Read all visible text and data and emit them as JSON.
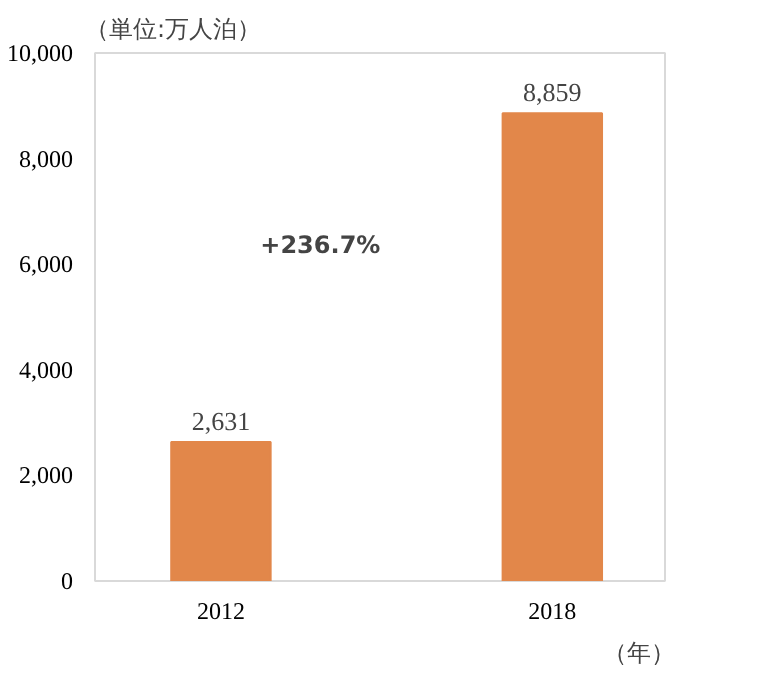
{
  "chart_data": {
    "type": "bar",
    "ylabel": "（単位:万人泊）",
    "xlabel": "（年）",
    "categories": [
      "2012",
      "2018"
    ],
    "values": [
      2631,
      8859
    ],
    "color": "#e2874a",
    "ylim": [
      0,
      10000
    ],
    "yticks": [
      {
        "value": 0,
        "label": "0"
      },
      {
        "value": 2000,
        "label": "2,000"
      },
      {
        "value": 4000,
        "label": "4,000"
      },
      {
        "value": 6000,
        "label": "6,000"
      },
      {
        "value": 8000,
        "label": "8,000"
      },
      {
        "value": 10000,
        "label": "10,000"
      }
    ],
    "value_labels": [
      "2,631",
      "8,859"
    ],
    "annotations": [
      "+236.7%"
    ],
    "grid": false
  }
}
